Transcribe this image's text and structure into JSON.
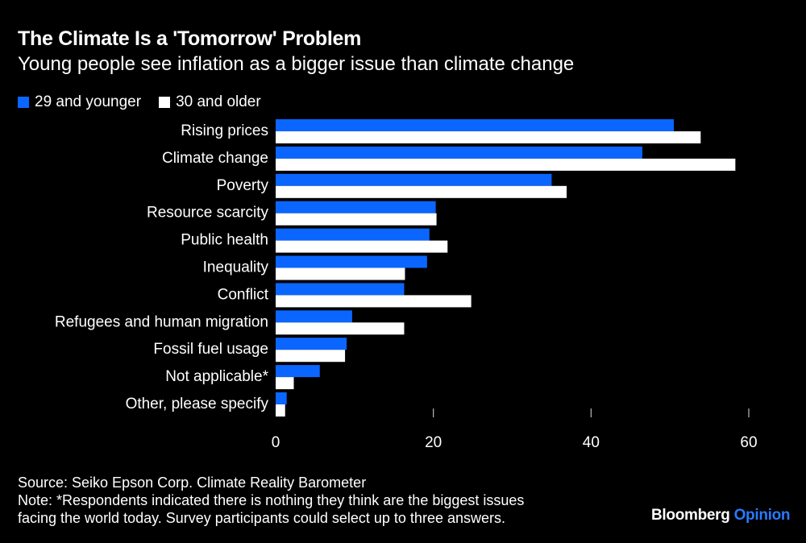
{
  "header": {
    "title": "The Climate Is a 'Tomorrow' Problem",
    "subtitle": "Young people see inflation as a bigger issue than climate change"
  },
  "colors": {
    "background": "#000000",
    "series_young": "#0a66ff",
    "series_old": "#ffffff",
    "text": "#ffffff",
    "brand_accent": "#2979ff"
  },
  "chart_data": {
    "type": "bar",
    "orientation": "horizontal",
    "categories": [
      "Rising prices",
      "Climate change",
      "Poverty",
      "Resource scarcity",
      "Public health",
      "Inequality",
      "Conflict",
      "Refugees and human migration",
      "Fossil fuel usage",
      "Not applicable*",
      "Other, please specify"
    ],
    "series": [
      {
        "name": "29 and younger",
        "values": [
          50.5,
          46.5,
          35,
          20.3,
          19.5,
          19.2,
          16.3,
          9.7,
          9.0,
          5.6,
          1.4
        ]
      },
      {
        "name": "30 and older",
        "values": [
          53.9,
          58.3,
          36.9,
          20.4,
          21.8,
          16.4,
          24.8,
          16.3,
          8.8,
          2.3,
          1.2
        ]
      }
    ],
    "xlim": [
      0,
      60
    ],
    "xticks": [
      0,
      20,
      40,
      60
    ],
    "grid": false,
    "legend_position": "top-left"
  },
  "footer": {
    "source": "Source: Seiko Epson Corp. Climate Reality Barometer",
    "note_line1": "Note: *Respondents indicated there is nothing they think are the biggest issues",
    "note_line2": "facing the world today. Survey participants could select up to three answers."
  },
  "brand": {
    "name": "Bloomberg",
    "section": "Opinion"
  }
}
